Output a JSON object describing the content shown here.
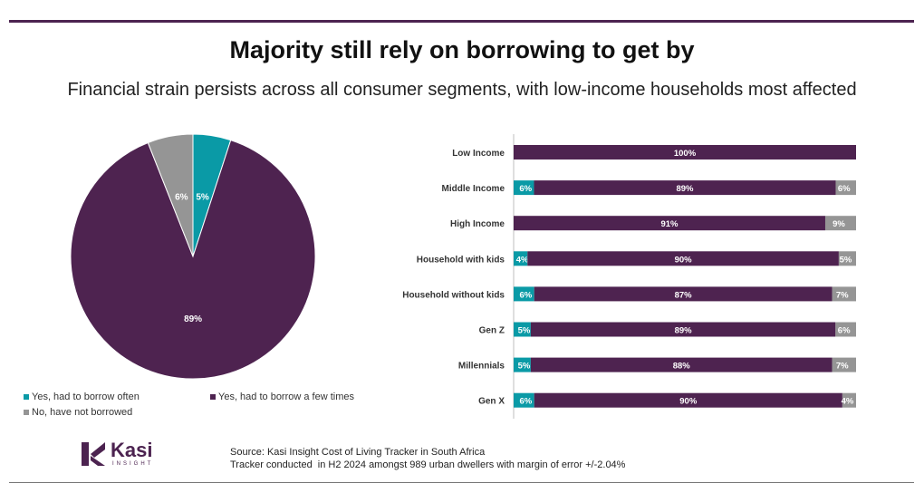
{
  "title": "Majority still rely on borrowing to get by",
  "subtitle": "Financial strain persists across all consumer segments, with low-income households most affected",
  "colors": {
    "often": "#0a9aa6",
    "few_times": "#4e2350",
    "not_borrowed": "#959595",
    "accent": "#4c2350"
  },
  "chart_data": [
    {
      "type": "pie",
      "slices": [
        {
          "name": "Yes, had to borrow often",
          "value": 5,
          "label": "5%"
        },
        {
          "name": "Yes, had to borrow a few times",
          "value": 89,
          "label": "89%"
        },
        {
          "name": "No, have not borrowed",
          "value": 6,
          "label": "6%"
        }
      ],
      "legend": [
        "Yes, had to borrow often",
        "Yes, had to borrow a few times",
        "No, have not borrowed"
      ],
      "legend_position": "bottom"
    },
    {
      "type": "bar",
      "orientation": "horizontal-stacked-100",
      "categories": [
        "Low Income",
        "Middle Income",
        "High Income",
        "Household with kids",
        "Household without kids",
        "Gen Z",
        "Millennials",
        "Gen X"
      ],
      "series": [
        {
          "name": "Yes, had to borrow often",
          "values": [
            0,
            6,
            0,
            4,
            6,
            5,
            5,
            6
          ],
          "labels": [
            "",
            "6%",
            "",
            "4%",
            "6%",
            "5%",
            "5%",
            "6%"
          ]
        },
        {
          "name": "Yes, had to borrow a few times",
          "values": [
            100,
            89,
            91,
            90,
            87,
            89,
            88,
            90
          ],
          "labels": [
            "100%",
            "89%",
            "91%",
            "90%",
            "87%",
            "89%",
            "88%",
            "90%"
          ]
        },
        {
          "name": "No, have not borrowed",
          "values": [
            0,
            6,
            9,
            5,
            7,
            6,
            7,
            4
          ],
          "labels": [
            "",
            "6%",
            "9%",
            "5%",
            "7%",
            "6%",
            "7%",
            "4%"
          ]
        }
      ],
      "xlim": [
        0,
        100
      ]
    }
  ],
  "logo": {
    "word": "Kasi",
    "sub": "INSIGHT"
  },
  "source": {
    "line1": "Source: Kasi Insight Cost of Living Tracker in South Africa",
    "line2": "Tracker conducted  in H2 2024 amongst 989 urban dwellers with margin of error +/-2.04%"
  }
}
